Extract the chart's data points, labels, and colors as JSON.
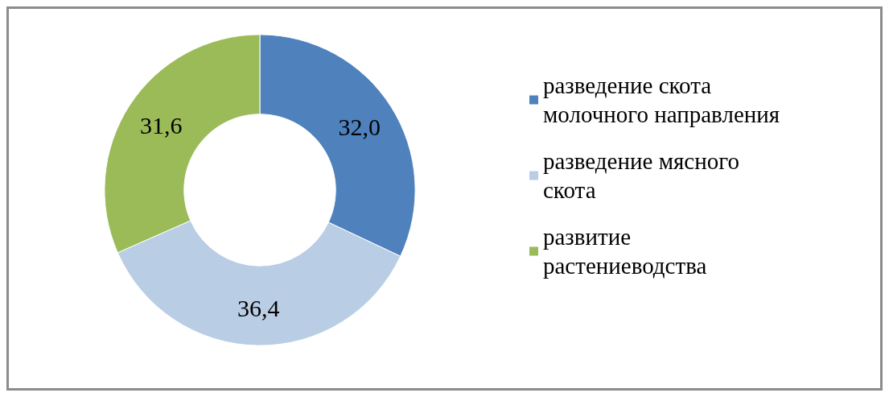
{
  "chart_data": {
    "type": "donut",
    "categories": [
      "разведение скота молочного направления",
      "разведение мясного скота",
      "развитие растениеводства"
    ],
    "values": [
      32.0,
      36.4,
      31.6
    ],
    "value_labels": [
      "32,0",
      "36,4",
      "31,6"
    ],
    "colors": [
      "#4f81bd",
      "#b9cde5",
      "#9bbb59"
    ],
    "legend": "right"
  }
}
